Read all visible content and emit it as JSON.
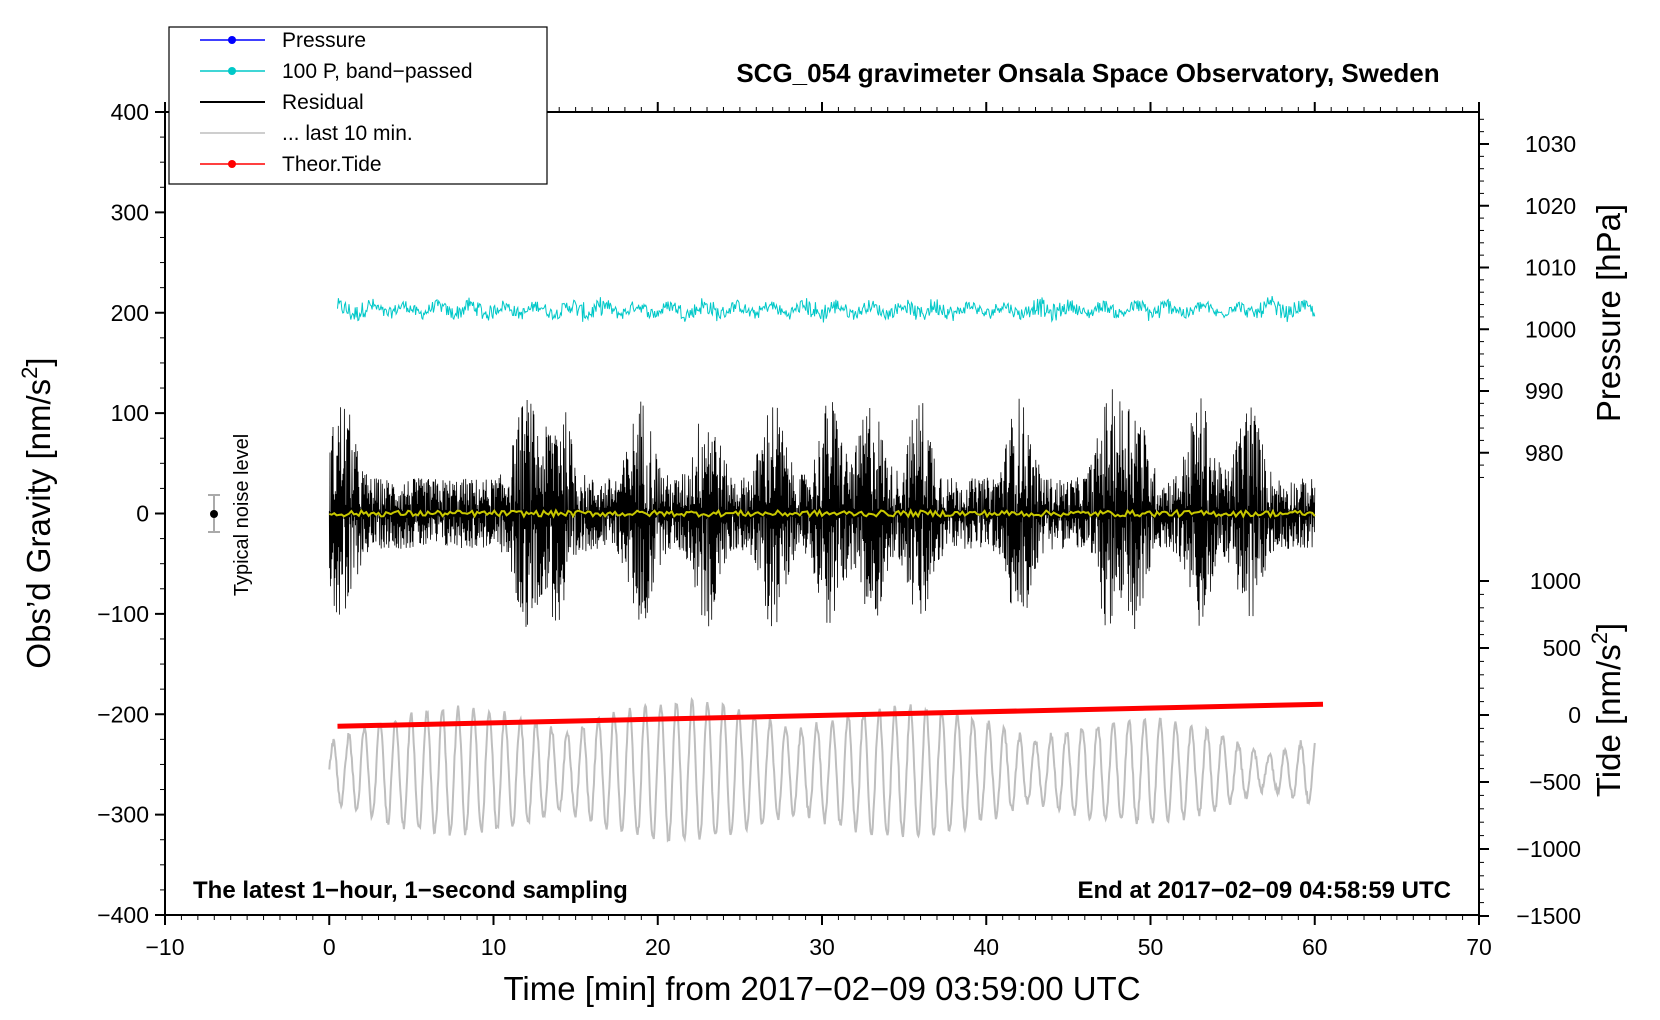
{
  "chart_data": {
    "type": "line",
    "title": "SCG_054 gravimeter Onsala Space Observatory, Sweden",
    "subtitle_left": "The latest 1−hour, 1−second sampling",
    "subtitle_right": "End at 2017−02−09 04:58:59 UTC",
    "xlabel": "Time [min] from 2017−02−09 03:59:00 UTC",
    "ylabel_main": "Obs’d Gravity [nm/s",
    "ylabel_main_sup": "2",
    "ylabel_main_close": "]",
    "ylabel_pressure": "Pressure [hPa]",
    "ylabel_tide": "Tide [nm/s",
    "ylabel_tide_sup": "2",
    "ylabel_tide_close": "]",
    "noise_label": "Typical noise level",
    "xlim": [
      -10,
      70
    ],
    "ylim": [
      -400,
      400
    ],
    "x_ticks": [
      -10,
      0,
      10,
      20,
      30,
      40,
      50,
      60,
      70
    ],
    "x_tick_labels": [
      "−10",
      "0",
      "10",
      "20",
      "30",
      "40",
      "50",
      "60",
      "70"
    ],
    "y_ticks": [
      400,
      300,
      200,
      100,
      0,
      -100,
      -200,
      -300,
      -400
    ],
    "y_tick_labels": [
      "400",
      "300",
      "200",
      "100",
      "0",
      "−100",
      "−200",
      "−300",
      "−400"
    ],
    "pressure_axis": {
      "ticks": [
        1030,
        1020,
        1010,
        1000,
        990,
        980
      ],
      "tick_labels": [
        "1030",
        "1020",
        "1010",
        "1000",
        "990",
        "980"
      ],
      "range": [
        975,
        1035
      ]
    },
    "tide_axis": {
      "ticks": [
        1000,
        500,
        0,
        -500,
        -1000,
        -1500
      ],
      "tick_labels": [
        "1000",
        "500",
        "0",
        "−500",
        "−1000",
        "−1500"
      ],
      "range": [
        -1500,
        1000
      ]
    },
    "legend": [
      {
        "label": "Pressure",
        "color": "#0000ff",
        "marker": true
      },
      {
        "label": "100 P, band−passed",
        "color": "#00c8c8",
        "marker": true
      },
      {
        "label": "Residual",
        "color": "#000000",
        "marker": false
      },
      {
        "label": "... last 10 min.",
        "color": "#bebebe",
        "marker": false
      },
      {
        "label": "Theor.Tide",
        "color": "#ff0000",
        "marker": true
      }
    ],
    "series": [
      {
        "name": "100 P, band−passed",
        "color": "#00c8c8",
        "x_range": [
          0.5,
          60
        ],
        "center": 203,
        "amplitude": 12
      },
      {
        "name": "Residual",
        "color": "#000000",
        "x_range": [
          0,
          60
        ],
        "center": 0,
        "amplitude": 110,
        "burst_minutes": [
          0.8,
          12,
          14,
          19,
          23,
          27,
          30.5,
          33,
          36,
          42,
          47.5,
          49,
          53,
          56
        ]
      },
      {
        "name": "Residual (smoothed)",
        "color": "#c8c800",
        "x_range": [
          0,
          60
        ],
        "center": 0,
        "amplitude": 3
      },
      {
        "name": "... last 10 min.",
        "color": "#bebebe",
        "x_range": [
          0,
          60
        ],
        "center": -257,
        "amplitude": 55
      },
      {
        "name": "Theor.Tide",
        "color": "#ff0000",
        "x": [
          0.5,
          60.5
        ],
        "y": [
          -212,
          -190
        ]
      }
    ],
    "noise_bar": {
      "x": -7,
      "y": 0,
      "low": -20,
      "high": 20
    }
  }
}
